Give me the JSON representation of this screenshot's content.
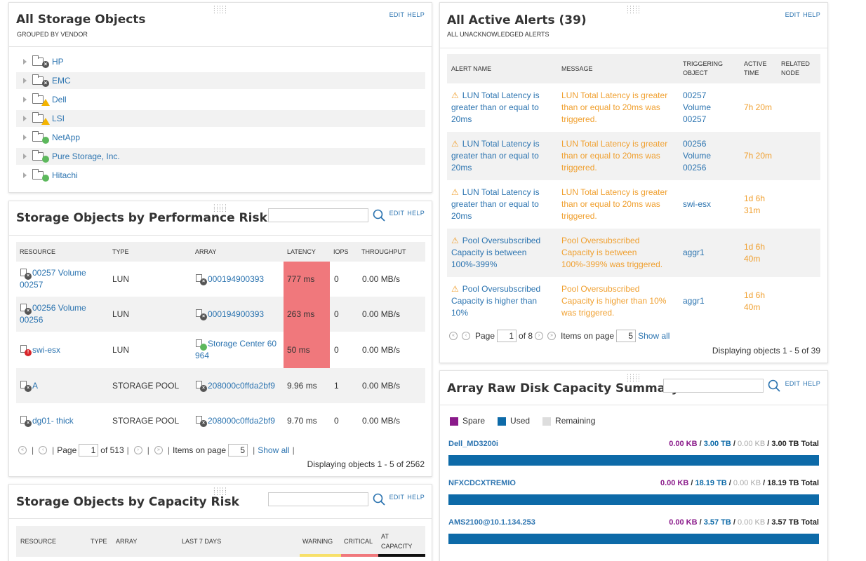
{
  "storage_objects": {
    "title": "All Storage Objects",
    "subtitle": "GROUPED BY VENDOR",
    "edit": "EDIT",
    "help": "HELP",
    "vendors": [
      {
        "name": "HP",
        "status": "x"
      },
      {
        "name": "EMC",
        "status": "x"
      },
      {
        "name": "Dell",
        "status": "warn"
      },
      {
        "name": "LSI",
        "status": "warn"
      },
      {
        "name": "NetApp",
        "status": "ok"
      },
      {
        "name": "Pure Storage, Inc.",
        "status": "ok"
      },
      {
        "name": "Hitachi",
        "status": "ok"
      }
    ]
  },
  "perf_risk": {
    "title": "Storage Objects by Performance Risk",
    "edit": "EDIT",
    "help": "HELP",
    "columns": [
      "RESOURCE",
      "TYPE",
      "ARRAY",
      "LATENCY",
      "IOPS",
      "THROUGHPUT"
    ],
    "rows": [
      {
        "resource": "00257 Volume 00257",
        "type": "LUN",
        "array": "000194900393",
        "latency": "777 ms",
        "iops": "0",
        "throughput": "0.00 MB/s",
        "res_status": "x",
        "arr_status": "x",
        "hot": true
      },
      {
        "resource": "00256 Volume 00256",
        "type": "LUN",
        "array": "000194900393",
        "latency": "263 ms",
        "iops": "0",
        "throughput": "0.00 MB/s",
        "res_status": "x",
        "arr_status": "x",
        "hot": true
      },
      {
        "resource": "swi-esx",
        "type": "LUN",
        "array": "Storage Center 60964",
        "latency": "50 ms",
        "iops": "0",
        "throughput": "0.00 MB/s",
        "res_status": "crit",
        "arr_status": "ok",
        "hot": true
      },
      {
        "resource": "A",
        "type": "STORAGE POOL",
        "array": "208000c0ffda2bf9",
        "latency": "9.96 ms",
        "iops": "1",
        "throughput": "0.00 MB/s",
        "res_status": "x",
        "arr_status": "x",
        "hot": false
      },
      {
        "resource": "dg01- thick",
        "type": "STORAGE POOL",
        "array": "208000c0ffda2bf9",
        "latency": "9.70 ms",
        "iops": "0",
        "throughput": "0.00 MB/s",
        "res_status": "x",
        "arr_status": "x",
        "hot": false
      }
    ],
    "pager": {
      "page_label": "Page",
      "page": "1",
      "of": "of 513",
      "items_label": "Items on page",
      "items": "5",
      "show_all": "Show all"
    },
    "displaying": "Displaying objects 1 - 5 of 2562"
  },
  "capacity_risk": {
    "title": "Storage Objects by Capacity Risk",
    "edit": "EDIT",
    "help": "HELP",
    "columns": [
      "RESOURCE",
      "TYPE",
      "ARRAY",
      "LAST 7 DAYS",
      "WARNING",
      "CRITICAL",
      "AT CAPACITY"
    ]
  },
  "alerts": {
    "title": "All Active Alerts (39)",
    "subtitle": "ALL UNACKNOWLEDGED ALERTS",
    "edit": "EDIT",
    "help": "HELP",
    "columns": [
      "ALERT NAME",
      "MESSAGE",
      "TRIGGERING OBJECT",
      "ACTIVE TIME",
      "RELATED NODE"
    ],
    "rows": [
      {
        "name": "LUN Total Latency is greater than or equal to 20ms",
        "message": "LUN Total Latency is greater than or equal to 20ms was triggered.",
        "object": "00257 Volume 00257",
        "time": "7h 20m"
      },
      {
        "name": "LUN Total Latency is greater than or equal to 20ms",
        "message": "LUN Total Latency is greater than or equal to 20ms was triggered.",
        "object": "00256 Volume 00256",
        "time": "7h 20m"
      },
      {
        "name": "LUN Total Latency is greater than or equal to 20ms",
        "message": "LUN Total Latency is greater than or equal to 20ms was triggered.",
        "object": "swi-esx",
        "time": "1d 6h 31m"
      },
      {
        "name": "Pool Oversubscribed Capacity is between 100%-399%",
        "message": "Pool Oversubscribed Capacity is between 100%-399% was triggered.",
        "object": "aggr1",
        "time": "1d 6h 40m"
      },
      {
        "name": "Pool Oversubscribed Capacity is higher than 10%",
        "message": "Pool Oversubscribed Capacity is higher than 10% was triggered.",
        "object": "aggr1",
        "time": "1d 6h 40m"
      }
    ],
    "pager": {
      "page_label": "Page",
      "page": "1",
      "of": "of 8",
      "items_label": "Items on page",
      "items": "5",
      "show_all": "Show all"
    },
    "displaying": "Displaying objects 1 - 5 of 39"
  },
  "raw_capacity": {
    "title": "Array Raw Disk Capacity Summary",
    "edit": "EDIT",
    "help": "HELP",
    "legend": [
      {
        "label": "Spare",
        "color": "#8a1a8a"
      },
      {
        "label": "Used",
        "color": "#0d6aa8"
      },
      {
        "label": "Remaining",
        "color": "#dddddd"
      }
    ],
    "arrays": [
      {
        "name": "Dell_MD3200i",
        "spare": "0.00 KB",
        "used": "3.00 TB",
        "remaining": "0.00 KB",
        "total": "3.00 TB Total",
        "used_fraction": 1.0
      },
      {
        "name": "NFXCDCXTREMIO",
        "spare": "0.00 KB",
        "used": "18.19 TB",
        "remaining": "0.00 KB",
        "total": "18.19 TB Total",
        "used_fraction": 1.0
      },
      {
        "name": "AMS2100@10.1.134.253",
        "spare": "0.00 KB",
        "used": "3.57 TB",
        "remaining": "0.00 KB",
        "total": "3.57 TB Total",
        "used_fraction": 1.0
      }
    ]
  },
  "colors": {
    "link": "#2c74b0",
    "warning": "#f0a030",
    "critical_cell": "#f0787c",
    "used_bar": "#0d6aa8"
  }
}
